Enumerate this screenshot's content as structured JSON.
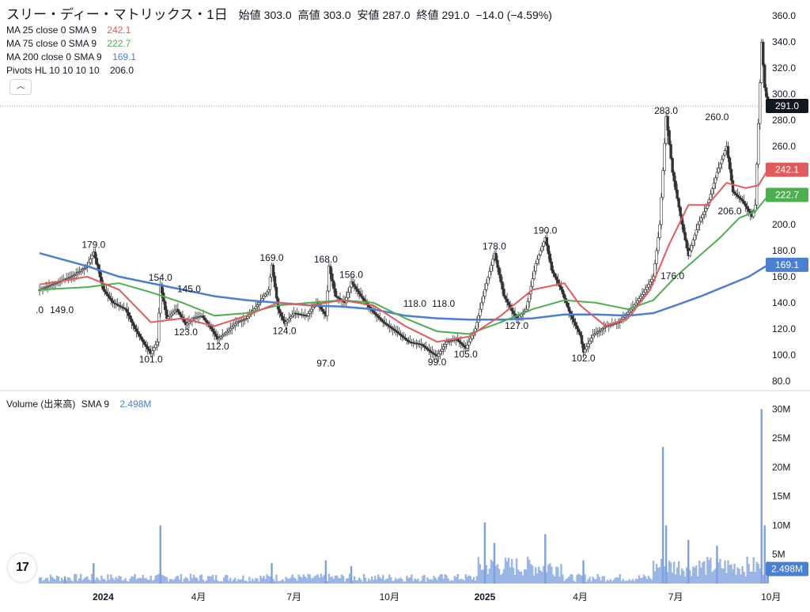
{
  "header": {
    "name": "スリー・ディー・マトリックス・1日",
    "open_label": "始値",
    "open": "303.0",
    "high_label": "高値",
    "high": "303.0",
    "low_label": "安値",
    "low": "287.0",
    "close_label": "終値",
    "close": "291.0",
    "change": "−14.0 (−4.59%)"
  },
  "indicators": [
    {
      "label": "MA 25 close 0 SMA 9",
      "value": "242.1",
      "color": "#e05c5c"
    },
    {
      "label": "MA 75 close 0 SMA 9",
      "value": "222.7",
      "color": "#4caf50"
    },
    {
      "label": "MA 200 close 0 SMA 9",
      "value": "169.1",
      "color": "#4a7fd1"
    },
    {
      "label": "Pivots HL 10 10 10 10",
      "value": "206.0",
      "color": "#131722"
    }
  ],
  "volume_header": {
    "label": "Volume (出来高)",
    "sma": "SMA 9",
    "value": "2.498M",
    "color": "#4a7fd1"
  },
  "collapse_icon": "chevron-up-icon",
  "logo_text": "17",
  "chart_data": {
    "type": "candlestick",
    "price_axis": {
      "ticks": [
        80,
        100,
        120,
        140,
        160,
        180,
        200,
        220,
        240,
        260,
        280,
        300,
        320,
        340,
        360
      ],
      "tick_labels": [
        "80.0",
        "100.0",
        "120.0",
        "140.0",
        "160.0",
        "180.0",
        "200.0",
        "220.0",
        "240.0",
        "260.0",
        "280.0",
        "300.0",
        "320.0",
        "340.0",
        "360.0"
      ],
      "range": [
        75,
        365
      ]
    },
    "volume_axis": {
      "ticks": [
        5,
        10,
        15,
        20,
        25,
        30
      ],
      "tick_labels": [
        "5M",
        "10M",
        "15M",
        "20M",
        "25M",
        "30M"
      ],
      "range": [
        0,
        31
      ],
      "unit": "M"
    },
    "time_axis": {
      "labels": [
        "2024",
        "4月",
        "7月",
        "10月",
        "2025",
        "4月",
        "7月",
        "10月"
      ],
      "bold": [
        true,
        false,
        false,
        false,
        true,
        false,
        false,
        false
      ],
      "positions_month_index": [
        2,
        5,
        8,
        11,
        14,
        17,
        20,
        23
      ],
      "range_months": [
        0,
        24
      ]
    },
    "last_price": {
      "value": 291.0,
      "label": "291.0",
      "color": "#131722"
    },
    "ma_labels": [
      {
        "value": 242.1,
        "label": "242.1",
        "color": "#e05c5c"
      },
      {
        "value": 222.7,
        "label": "222.7",
        "color": "#4caf50"
      },
      {
        "value": 169.1,
        "label": "169.1",
        "color": "#4a7fd1"
      }
    ],
    "volume_last": {
      "value": 2.498,
      "label": "2.498M",
      "color": "#4a7fd1"
    },
    "pivots": [
      {
        "t": 0.0,
        "v": 132,
        "text": ".0"
      },
      {
        "t": 0.7,
        "v": 132,
        "text": "149.0"
      },
      {
        "t": 1.7,
        "v": 182,
        "text": "179.0"
      },
      {
        "t": 3.5,
        "v": 94,
        "text": "101.0"
      },
      {
        "t": 3.8,
        "v": 157,
        "text": "154.0"
      },
      {
        "t": 4.6,
        "v": 115,
        "text": "123.0"
      },
      {
        "t": 4.7,
        "v": 148,
        "text": "145.0"
      },
      {
        "t": 5.6,
        "v": 104,
        "text": "112.0"
      },
      {
        "t": 7.3,
        "v": 172,
        "text": "169.0"
      },
      {
        "t": 7.7,
        "v": 116,
        "text": "124.0"
      },
      {
        "t": 9.0,
        "v": 91,
        "text": "97.0"
      },
      {
        "t": 9.0,
        "v": 171,
        "text": "168.0"
      },
      {
        "t": 9.8,
        "v": 159,
        "text": "156.0"
      },
      {
        "t": 11.8,
        "v": 137,
        "text": "118.0"
      },
      {
        "t": 12.5,
        "v": 92,
        "text": "99.0"
      },
      {
        "t": 12.7,
        "v": 137,
        "text": "118.0"
      },
      {
        "t": 13.4,
        "v": 98,
        "text": "105.0"
      },
      {
        "t": 14.3,
        "v": 181,
        "text": "178.0"
      },
      {
        "t": 15.0,
        "v": 120,
        "text": "127.0"
      },
      {
        "t": 15.9,
        "v": 193,
        "text": "190.0"
      },
      {
        "t": 17.1,
        "v": 95,
        "text": "102.0"
      },
      {
        "t": 19.7,
        "v": 285,
        "text": "283.0"
      },
      {
        "t": 19.9,
        "v": 158,
        "text": "176.0"
      },
      {
        "t": 21.3,
        "v": 280,
        "text": "260.0"
      },
      {
        "t": 21.7,
        "v": 208,
        "text": "206.0"
      }
    ],
    "price_path": [
      [
        0,
        150
      ],
      [
        0.5,
        155
      ],
      [
        1.0,
        160
      ],
      [
        1.5,
        168
      ],
      [
        1.7,
        179
      ],
      [
        2.0,
        150
      ],
      [
        2.3,
        140
      ],
      [
        2.7,
        135
      ],
      [
        3.0,
        120
      ],
      [
        3.3,
        108
      ],
      [
        3.5,
        101
      ],
      [
        3.7,
        110
      ],
      [
        3.8,
        154
      ],
      [
        4.0,
        128
      ],
      [
        4.3,
        135
      ],
      [
        4.6,
        123
      ],
      [
        4.8,
        128
      ],
      [
        5.1,
        130
      ],
      [
        5.4,
        120
      ],
      [
        5.6,
        112
      ],
      [
        5.9,
        118
      ],
      [
        6.2,
        125
      ],
      [
        6.5,
        128
      ],
      [
        6.9,
        140
      ],
      [
        7.2,
        150
      ],
      [
        7.3,
        169
      ],
      [
        7.5,
        135
      ],
      [
        7.7,
        124
      ],
      [
        8.0,
        132
      ],
      [
        8.4,
        130
      ],
      [
        8.7,
        140
      ],
      [
        9.0,
        130
      ],
      [
        9.1,
        168
      ],
      [
        9.3,
        145
      ],
      [
        9.6,
        140
      ],
      [
        9.8,
        156
      ],
      [
        10.1,
        145
      ],
      [
        10.4,
        135
      ],
      [
        10.8,
        125
      ],
      [
        11.2,
        118
      ],
      [
        11.6,
        110
      ],
      [
        12.0,
        108
      ],
      [
        12.3,
        102
      ],
      [
        12.5,
        99
      ],
      [
        12.8,
        110
      ],
      [
        13.1,
        112
      ],
      [
        13.4,
        105
      ],
      [
        13.7,
        120
      ],
      [
        14.0,
        150
      ],
      [
        14.3,
        178
      ],
      [
        14.6,
        145
      ],
      [
        15.0,
        127
      ],
      [
        15.3,
        135
      ],
      [
        15.6,
        170
      ],
      [
        15.9,
        190
      ],
      [
        16.1,
        165
      ],
      [
        16.4,
        150
      ],
      [
        16.7,
        130
      ],
      [
        17.0,
        115
      ],
      [
        17.1,
        102
      ],
      [
        17.4,
        115
      ],
      [
        17.8,
        122
      ],
      [
        18.2,
        125
      ],
      [
        18.6,
        135
      ],
      [
        19.0,
        148
      ],
      [
        19.3,
        160
      ],
      [
        19.5,
        200
      ],
      [
        19.7,
        283
      ],
      [
        19.9,
        240
      ],
      [
        20.2,
        200
      ],
      [
        20.4,
        176
      ],
      [
        20.7,
        200
      ],
      [
        21.0,
        215
      ],
      [
        21.3,
        240
      ],
      [
        21.6,
        260
      ],
      [
        21.8,
        225
      ],
      [
        22.1,
        218
      ],
      [
        22.4,
        206
      ],
      [
        22.5,
        215
      ],
      [
        22.7,
        340
      ],
      [
        22.8,
        305
      ],
      [
        22.9,
        291
      ]
    ],
    "ma25_path": [
      [
        0,
        154
      ],
      [
        1.5,
        160
      ],
      [
        2.5,
        150
      ],
      [
        3.5,
        125
      ],
      [
        4.5,
        128
      ],
      [
        5.5,
        122
      ],
      [
        6.5,
        130
      ],
      [
        7.5,
        140
      ],
      [
        8.5,
        138
      ],
      [
        9.5,
        142
      ],
      [
        10.5,
        138
      ],
      [
        11.5,
        122
      ],
      [
        12.5,
        110
      ],
      [
        13.5,
        114
      ],
      [
        14.5,
        130
      ],
      [
        15.5,
        150
      ],
      [
        16.5,
        155
      ],
      [
        17.0,
        138
      ],
      [
        17.8,
        122
      ],
      [
        18.5,
        128
      ],
      [
        19.2,
        150
      ],
      [
        19.8,
        185
      ],
      [
        20.4,
        215
      ],
      [
        21.0,
        215
      ],
      [
        21.6,
        232
      ],
      [
        22.2,
        228
      ],
      [
        22.6,
        230
      ],
      [
        22.9,
        242
      ]
    ],
    "ma75_path": [
      [
        0,
        150
      ],
      [
        1.5,
        152
      ],
      [
        2.5,
        155
      ],
      [
        3.5,
        148
      ],
      [
        4.5,
        140
      ],
      [
        5.5,
        130
      ],
      [
        6.5,
        132
      ],
      [
        7.5,
        138
      ],
      [
        8.5,
        140
      ],
      [
        9.5,
        142
      ],
      [
        10.5,
        140
      ],
      [
        11.5,
        128
      ],
      [
        12.5,
        118
      ],
      [
        13.5,
        116
      ],
      [
        14.5,
        125
      ],
      [
        15.5,
        135
      ],
      [
        16.5,
        142
      ],
      [
        17.5,
        140
      ],
      [
        18.5,
        135
      ],
      [
        19.3,
        142
      ],
      [
        20.0,
        160
      ],
      [
        20.7,
        175
      ],
      [
        21.4,
        190
      ],
      [
        22.0,
        205
      ],
      [
        22.5,
        210
      ],
      [
        22.9,
        222
      ]
    ],
    "ma200_path": [
      [
        0,
        178
      ],
      [
        1.5,
        168
      ],
      [
        2.5,
        160
      ],
      [
        3.5,
        155
      ],
      [
        4.5,
        150
      ],
      [
        5.5,
        145
      ],
      [
        6.5,
        142
      ],
      [
        7.5,
        140
      ],
      [
        8.5,
        138
      ],
      [
        9.5,
        137
      ],
      [
        10.5,
        135
      ],
      [
        11.5,
        130
      ],
      [
        12.5,
        128
      ],
      [
        13.5,
        127
      ],
      [
        14.5,
        127
      ],
      [
        15.5,
        128
      ],
      [
        16.5,
        131
      ],
      [
        17.5,
        131
      ],
      [
        18.5,
        130
      ],
      [
        19.3,
        132
      ],
      [
        20.0,
        138
      ],
      [
        20.8,
        145
      ],
      [
        21.6,
        153
      ],
      [
        22.3,
        160
      ],
      [
        22.9,
        169
      ]
    ],
    "volume_spikes": [
      [
        0.8,
        1.2
      ],
      [
        1.7,
        3.5
      ],
      [
        3.8,
        10
      ],
      [
        7.3,
        3.5
      ],
      [
        9.0,
        4.0
      ],
      [
        9.8,
        3.0
      ],
      [
        14.0,
        10.5
      ],
      [
        14.3,
        7.0
      ],
      [
        15.9,
        8.5
      ],
      [
        17.1,
        4.0
      ],
      [
        19.6,
        23.5
      ],
      [
        19.7,
        10.0
      ],
      [
        20.4,
        7.5
      ],
      [
        21.3,
        6.5
      ],
      [
        22.7,
        30
      ],
      [
        22.8,
        10
      ],
      [
        22.9,
        2.5
      ]
    ]
  }
}
